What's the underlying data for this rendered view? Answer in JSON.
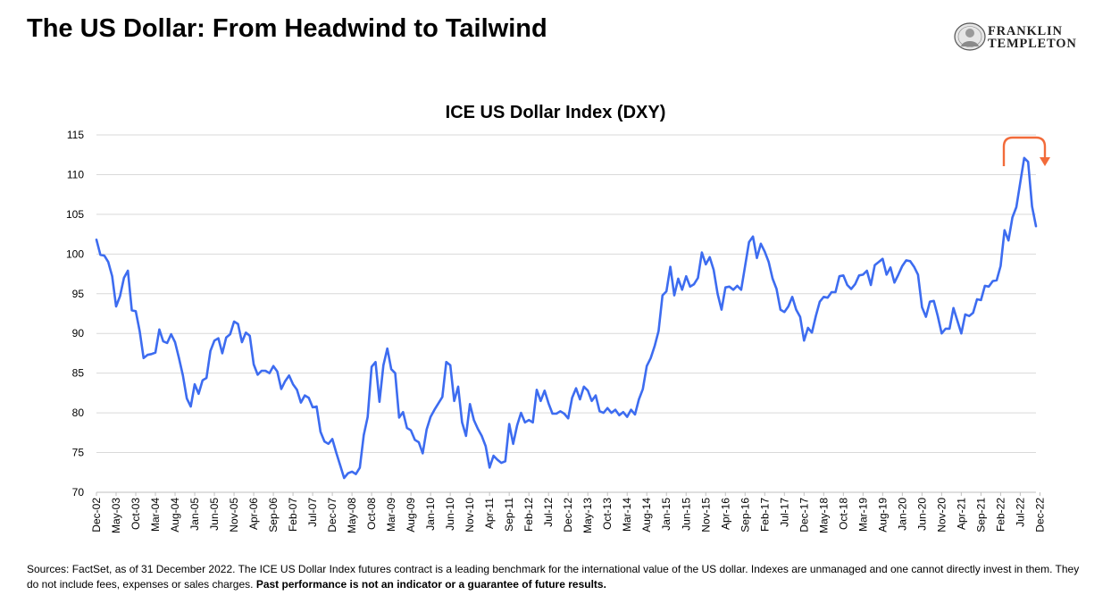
{
  "header": {
    "title": "The US Dollar: From Headwind to Tailwind",
    "logo_line1": "FRANKLIN",
    "logo_line2": "TEMPLETON"
  },
  "footnote": {
    "text": "Sources: FactSet, as of 31 December 2022. The ICE US Dollar Index futures contract is a leading benchmark for the international value of the US dollar. Indexes are unmanaged and one cannot directly invest in them. They do not include fees, expenses or sales charges. ",
    "bold": "Past performance is not an indicator or a guarantee of future results."
  },
  "colors": {
    "line": "#3d6cf0",
    "arrow": "#f26b3a",
    "grid": "#d9d9d9"
  },
  "chart_data": {
    "type": "line",
    "title": "ICE US Dollar Index (DXY)",
    "ylim": [
      70,
      115
    ],
    "yticks": [
      70,
      75,
      80,
      85,
      90,
      95,
      100,
      105,
      110,
      115
    ],
    "grid": "horizontal",
    "x_tick_labels": [
      "Dec-02",
      "May-03",
      "Oct-03",
      "Mar-04",
      "Aug-04",
      "Jan-05",
      "Jun-05",
      "Nov-05",
      "Apr-06",
      "Sep-06",
      "Feb-07",
      "Jul-07",
      "Dec-07",
      "May-08",
      "Oct-08",
      "Mar-09",
      "Aug-09",
      "Jan-10",
      "Jun-10",
      "Nov-10",
      "Apr-11",
      "Sep-11",
      "Feb-12",
      "Jul-12",
      "Dec-12",
      "May-13",
      "Oct-13",
      "Mar-14",
      "Aug-14",
      "Jan-15",
      "Jun-15",
      "Nov-15",
      "Apr-16",
      "Sep-16",
      "Feb-17",
      "Jul-17",
      "Dec-17",
      "May-18",
      "Oct-18",
      "Mar-19",
      "Aug-19",
      "Jan-20",
      "Jun-20",
      "Nov-20",
      "Apr-21",
      "Sep-21",
      "Feb-22",
      "Jul-22",
      "Dec-22"
    ],
    "series": [
      {
        "frequency": "monthly",
        "start": "Dec-02",
        "end": "Dec-22",
        "values": [
          101.8,
          99.9,
          99.8,
          99.0,
          97.2,
          93.4,
          94.7,
          97.0,
          97.9,
          92.9,
          92.8,
          90.3,
          86.9,
          87.3,
          87.4,
          87.6,
          90.5,
          89.0,
          88.8,
          89.9,
          88.9,
          86.9,
          84.7,
          81.8,
          80.8,
          83.6,
          82.4,
          84.1,
          84.4,
          87.8,
          89.1,
          89.4,
          87.5,
          89.5,
          89.9,
          91.5,
          91.2,
          88.9,
          90.1,
          89.7,
          86.1,
          84.8,
          85.3,
          85.3,
          85.0,
          85.9,
          85.2,
          83.0,
          84.0,
          84.7,
          83.6,
          82.9,
          81.3,
          82.2,
          81.9,
          80.7,
          80.8,
          77.6,
          76.4,
          76.1,
          76.7,
          75.0,
          73.4,
          71.8,
          72.4,
          72.6,
          72.3,
          73.1,
          77.2,
          79.5,
          85.8,
          86.4,
          81.4,
          86.0,
          88.1,
          85.5,
          85.0,
          79.4,
          80.1,
          78.1,
          77.8,
          76.6,
          76.3,
          74.9,
          77.9,
          79.5,
          80.4,
          81.2,
          82.0,
          86.4,
          86.0,
          81.5,
          83.3,
          78.8,
          77.1,
          81.1,
          79.1,
          78.0,
          77.1,
          75.8,
          73.1,
          74.6,
          74.1,
          73.7,
          73.9,
          78.6,
          76.1,
          78.4,
          80.0,
          78.8,
          79.1,
          78.8,
          82.9,
          81.5,
          82.8,
          81.2,
          79.9,
          79.9,
          80.2,
          79.9,
          79.3,
          81.9,
          83.1,
          81.7,
          83.3,
          82.8,
          81.5,
          82.2,
          80.2,
          80.0,
          80.6,
          80.0,
          80.4,
          79.7,
          80.1,
          79.5,
          80.4,
          79.8,
          81.7,
          83.0,
          85.9,
          86.9,
          88.4,
          90.3,
          94.8,
          95.3,
          98.4,
          94.8,
          96.9,
          95.5,
          97.2,
          95.9,
          96.2,
          97.0,
          100.2,
          98.7,
          99.6,
          98.0,
          95.0,
          93.0,
          95.8,
          95.9,
          95.5,
          96.0,
          95.5,
          98.5,
          101.5,
          102.2,
          99.5,
          101.3,
          100.3,
          99.0,
          96.9,
          95.6,
          93.0,
          92.7,
          93.4,
          94.6,
          93.0,
          92.1,
          89.1,
          90.7,
          90.1,
          92.2,
          94.0,
          94.6,
          94.5,
          95.2,
          95.2,
          97.2,
          97.3,
          96.1,
          95.6,
          96.2,
          97.3,
          97.4,
          97.9,
          96.1,
          98.6,
          99.0,
          99.4,
          97.4,
          98.3,
          96.4,
          97.4,
          98.5,
          99.2,
          99.1,
          98.4,
          97.4,
          93.3,
          92.1,
          94.0,
          94.1,
          92.2,
          90.0,
          90.6,
          90.6,
          93.2,
          91.6,
          90.0,
          92.4,
          92.2,
          92.6,
          94.3,
          94.2,
          96.0,
          95.9,
          96.6,
          96.7,
          98.5,
          103.0,
          101.7,
          104.6,
          105.9,
          109.0,
          112.1,
          111.6,
          106.0,
          103.5
        ]
      }
    ],
    "annotation": "arrow indicating reversal from 2022 peak"
  }
}
